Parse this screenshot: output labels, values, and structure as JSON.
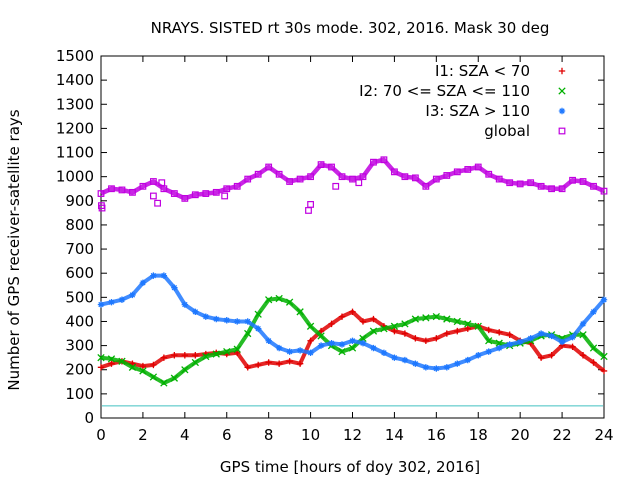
{
  "chart_data": {
    "type": "scatter",
    "title": "NRAYS. SISTED rt 30s mode. 302, 2016. Mask 30 deg",
    "xlabel": "GPS time [hours of doy 302, 2016]",
    "ylabel": "Number of GPS receiver-satellite rays",
    "xlim": [
      0,
      24
    ],
    "ylim": [
      0,
      1500
    ],
    "xticks": [
      0,
      2,
      4,
      6,
      8,
      10,
      12,
      14,
      16,
      18,
      20,
      22,
      24
    ],
    "yticks": [
      0,
      100,
      200,
      300,
      400,
      500,
      600,
      700,
      800,
      900,
      1000,
      1100,
      1200,
      1300,
      1400,
      1500
    ],
    "legend_position": "top-right",
    "threshold_line": {
      "y": 50,
      "color": "#40c0c0"
    },
    "series": [
      {
        "name": "I1: SZA < 70",
        "color": "#e00000",
        "marker": "+",
        "x": [
          0,
          0.5,
          1,
          1.5,
          2,
          2.5,
          3,
          3.5,
          4,
          4.5,
          5,
          5.5,
          6,
          6.5,
          7,
          7.5,
          8,
          8.5,
          9,
          9.5,
          10,
          10.5,
          11,
          11.5,
          12,
          12.5,
          13,
          13.5,
          14,
          14.5,
          15,
          15.5,
          16,
          16.5,
          17,
          17.5,
          18,
          18.5,
          19,
          19.5,
          20,
          20.5,
          21,
          21.5,
          22,
          22.5,
          23,
          23.5,
          24
        ],
        "y": [
          210,
          225,
          235,
          225,
          215,
          220,
          250,
          260,
          260,
          260,
          265,
          270,
          265,
          270,
          210,
          220,
          230,
          225,
          235,
          225,
          320,
          360,
          390,
          420,
          440,
          400,
          410,
          380,
          360,
          350,
          330,
          320,
          330,
          350,
          360,
          370,
          380,
          365,
          355,
          345,
          320,
          310,
          250,
          260,
          300,
          295,
          260,
          230,
          195
        ]
      },
      {
        "name": "I2: 70 <= SZA <= 110",
        "color": "#00b000",
        "marker": "x",
        "x": [
          0,
          0.5,
          1,
          1.5,
          2,
          2.5,
          3,
          3.5,
          4,
          4.5,
          5,
          5.5,
          6,
          6.5,
          7,
          7.5,
          8,
          8.5,
          9,
          9.5,
          10,
          10.5,
          11,
          11.5,
          12,
          12.5,
          13,
          13.5,
          14,
          14.5,
          15,
          15.5,
          16,
          16.5,
          17,
          17.5,
          18,
          18.5,
          19,
          19.5,
          20,
          20.5,
          21,
          21.5,
          22,
          22.5,
          23,
          23.5,
          24
        ],
        "y": [
          250,
          245,
          235,
          210,
          195,
          170,
          145,
          165,
          200,
          230,
          255,
          265,
          275,
          285,
          350,
          430,
          490,
          495,
          480,
          440,
          380,
          340,
          300,
          275,
          290,
          330,
          360,
          370,
          380,
          390,
          410,
          415,
          420,
          410,
          400,
          390,
          380,
          320,
          310,
          300,
          310,
          320,
          340,
          345,
          330,
          345,
          345,
          290,
          255
        ]
      },
      {
        "name": "I3: SZA > 110",
        "color": "#1e78ff",
        "marker": "*",
        "x": [
          0,
          0.5,
          1,
          1.5,
          2,
          2.5,
          3,
          3.5,
          4,
          4.5,
          5,
          5.5,
          6,
          6.5,
          7,
          7.5,
          8,
          8.5,
          9,
          9.5,
          10,
          10.5,
          11,
          11.5,
          12,
          12.5,
          13,
          13.5,
          14,
          14.5,
          15,
          15.5,
          16,
          16.5,
          17,
          17.5,
          18,
          18.5,
          19,
          19.5,
          20,
          20.5,
          21,
          21.5,
          22,
          22.5,
          23,
          23.5,
          24
        ],
        "y": [
          470,
          480,
          490,
          510,
          560,
          590,
          590,
          540,
          470,
          440,
          420,
          410,
          405,
          400,
          400,
          370,
          320,
          290,
          275,
          280,
          270,
          300,
          310,
          305,
          320,
          310,
          290,
          270,
          250,
          240,
          225,
          210,
          205,
          210,
          225,
          240,
          260,
          275,
          290,
          305,
          315,
          330,
          350,
          340,
          315,
          335,
          390,
          440,
          490
        ]
      },
      {
        "name": "global",
        "color": "#c000e0",
        "marker": "square",
        "x": [
          0,
          0.5,
          1,
          1.5,
          2,
          2.5,
          3,
          3.5,
          4,
          4.5,
          5,
          5.5,
          6,
          6.5,
          7,
          7.5,
          8,
          8.5,
          9,
          9.5,
          10,
          10.5,
          11,
          11.5,
          12,
          12.5,
          13,
          13.5,
          14,
          14.5,
          15,
          15.5,
          16,
          16.5,
          17,
          17.5,
          18,
          18.5,
          19,
          19.5,
          20,
          20.5,
          21,
          21.5,
          22,
          22.5,
          23,
          23.5,
          24,
          0.02,
          0.05,
          2.5,
          2.7,
          2.9,
          5.9,
          9.9,
          10.0,
          11.2,
          12.3
        ],
        "y": [
          930,
          950,
          945,
          935,
          960,
          980,
          950,
          930,
          910,
          925,
          930,
          935,
          950,
          960,
          990,
          1010,
          1040,
          1010,
          980,
          990,
          1000,
          1050,
          1040,
          1000,
          990,
          1000,
          1060,
          1070,
          1020,
          1000,
          995,
          960,
          990,
          1005,
          1020,
          1030,
          1040,
          1010,
          990,
          975,
          970,
          975,
          960,
          950,
          950,
          985,
          980,
          960,
          940,
          880,
          870,
          920,
          890,
          975,
          920,
          860,
          885,
          960,
          975
        ]
      }
    ]
  }
}
